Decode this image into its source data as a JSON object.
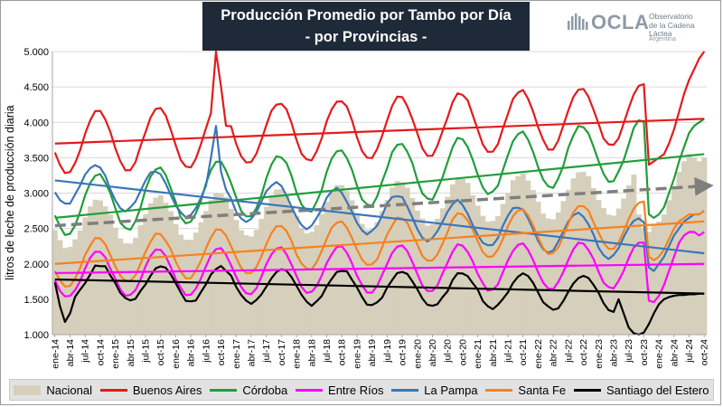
{
  "title": {
    "line1": "Producción Promedio por Tambo por Día",
    "line2": "- por Provincias -"
  },
  "logo": {
    "name": "OCLA",
    "line1": "Observatorio",
    "line2": "de la Cadena Láctea",
    "country": "Argentina",
    "color": "#8e9aa6"
  },
  "chart_data": {
    "type": "line",
    "ylabel": "litros de leche de producción diaria",
    "ylim": [
      1000,
      5000
    ],
    "yticks": [
      1000,
      1500,
      2000,
      2500,
      3000,
      3500,
      4000,
      4500,
      5000
    ],
    "ytick_labels": [
      "1.000",
      "1.500",
      "2.000",
      "2.500",
      "3.000",
      "3.500",
      "4.000",
      "4.500",
      "5.000"
    ],
    "grid": true,
    "legend_position": "bottom",
    "x_start": "ene-14",
    "months": 130,
    "x_tick_labels": [
      "ene-14",
      "abr-14",
      "jul-14",
      "oct-14",
      "ene-15",
      "abr-15",
      "jul-15",
      "oct-15",
      "ene-16",
      "abr-16",
      "jul-16",
      "oct-16",
      "ene-17",
      "abr-17",
      "jul-17",
      "oct-17",
      "ene-18",
      "abr-18",
      "jul-18",
      "oct-18",
      "ene-19",
      "abr-19",
      "jul-19",
      "oct-19",
      "ene-20",
      "abr-20",
      "jul-20",
      "oct-20",
      "ene-21",
      "abr-21",
      "jul-21",
      "oct-21",
      "ene-22",
      "abr-22",
      "jul-22",
      "oct-22",
      "ene-23",
      "abr-23",
      "jul-23",
      "oct-23",
      "ene-24",
      "abr-24",
      "jul-24",
      "oct-24"
    ],
    "series": [
      {
        "name": "Nacional",
        "kind": "area",
        "color": "#d6cfbb",
        "mean": 2550,
        "slope": 4.2,
        "amp": 330,
        "phase": 8.5,
        "noise": 35,
        "tail": [
          [
            116,
            2700
          ],
          [
            117,
            2500
          ],
          [
            118,
            2450
          ],
          [
            119,
            2550
          ],
          [
            120,
            2600
          ],
          [
            121,
            2700
          ],
          [
            122,
            2900
          ],
          [
            123,
            3050
          ],
          [
            124,
            3300
          ],
          [
            125,
            3450
          ],
          [
            126,
            3550
          ],
          [
            127,
            3500
          ],
          [
            128,
            3450
          ],
          [
            129,
            3500
          ]
        ]
      },
      {
        "name": "Buenos Aires",
        "kind": "line",
        "color": "#e41a1c",
        "mean": 3700,
        "slope": 3.5,
        "amp": 430,
        "phase": 8.5,
        "noise": 40,
        "spikes": [
          [
            32,
            5000
          ],
          [
            33,
            4500
          ],
          [
            34,
            3950
          ]
        ],
        "tail": [
          [
            118,
            3400
          ],
          [
            119,
            3450
          ],
          [
            120,
            3500
          ],
          [
            121,
            3550
          ],
          [
            122,
            3700
          ],
          [
            123,
            3900
          ],
          [
            124,
            4150
          ],
          [
            125,
            4400
          ],
          [
            126,
            4600
          ],
          [
            127,
            4750
          ],
          [
            128,
            4900
          ],
          [
            129,
            5000
          ]
        ]
      },
      {
        "name": "Córdoba",
        "kind": "line",
        "color": "#1f9e3a",
        "mean": 2800,
        "slope": 7.0,
        "amp": 420,
        "phase": 8.5,
        "noise": 40,
        "tail": [
          [
            118,
            2700
          ],
          [
            119,
            2650
          ],
          [
            120,
            2700
          ],
          [
            121,
            2800
          ],
          [
            122,
            3000
          ],
          [
            123,
            3200
          ],
          [
            124,
            3450
          ],
          [
            125,
            3650
          ],
          [
            126,
            3850
          ],
          [
            127,
            3950
          ],
          [
            128,
            4000
          ],
          [
            129,
            4050
          ]
        ]
      },
      {
        "name": "Entre Ríos",
        "kind": "line",
        "color": "#ff00ff",
        "mean": 1850,
        "slope": 1.2,
        "amp": 330,
        "phase": 8.5,
        "noise": 30,
        "tail": [
          [
            118,
            1480
          ],
          [
            119,
            1460
          ],
          [
            120,
            1550
          ],
          [
            121,
            1700
          ],
          [
            122,
            1900
          ],
          [
            123,
            2100
          ],
          [
            124,
            2300
          ],
          [
            125,
            2400
          ],
          [
            126,
            2450
          ],
          [
            127,
            2450
          ],
          [
            128,
            2400
          ],
          [
            129,
            2450
          ]
        ]
      },
      {
        "name": "La Pampa",
        "kind": "line",
        "color": "#3a76b8",
        "mean": 3150,
        "slope": -7.0,
        "amp": 300,
        "phase": 8.0,
        "noise": 40,
        "spikes": [
          [
            31,
            3500
          ],
          [
            32,
            3950
          ],
          [
            33,
            3300
          ]
        ],
        "tail": [
          [
            118,
            1950
          ],
          [
            119,
            1900
          ],
          [
            120,
            2000
          ],
          [
            121,
            2100
          ],
          [
            122,
            2250
          ],
          [
            123,
            2400
          ],
          [
            124,
            2500
          ],
          [
            125,
            2600
          ],
          [
            126,
            2650
          ],
          [
            127,
            2700
          ],
          [
            128,
            2700
          ],
          [
            129,
            2750
          ]
        ]
      },
      {
        "name": "Santa Fe",
        "kind": "line",
        "color": "#f58220",
        "mean": 2000,
        "slope": 4.8,
        "amp": 330,
        "phase": 8.5,
        "noise": 30,
        "tail": [
          [
            118,
            2100
          ],
          [
            119,
            2050
          ],
          [
            120,
            2100
          ],
          [
            121,
            2200
          ],
          [
            122,
            2350
          ],
          [
            123,
            2500
          ],
          [
            124,
            2600
          ],
          [
            125,
            2650
          ],
          [
            126,
            2700
          ],
          [
            127,
            2700
          ],
          [
            128,
            2700
          ],
          [
            129,
            2750
          ]
        ]
      },
      {
        "name": "Santiago del Estero",
        "kind": "line",
        "color": "#000000",
        "mean": 1750,
        "slope": -1.5,
        "amp": 250,
        "phase": 9.0,
        "noise": 45,
        "dips": [
          [
            1,
            1400
          ],
          [
            2,
            1180
          ],
          [
            3,
            1300
          ]
        ],
        "tail": [
          [
            112,
            1500
          ],
          [
            113,
            1300
          ],
          [
            114,
            1100
          ],
          [
            115,
            1020
          ],
          [
            116,
            1000
          ],
          [
            117,
            1030
          ],
          [
            118,
            1150
          ],
          [
            119,
            1300
          ],
          [
            120,
            1430
          ],
          [
            121,
            1500
          ],
          [
            122,
            1530
          ],
          [
            123,
            1550
          ],
          [
            124,
            1560
          ],
          [
            125,
            1560
          ],
          [
            126,
            1570
          ],
          [
            127,
            1570
          ],
          [
            128,
            1580
          ],
          [
            129,
            1580
          ]
        ]
      }
    ],
    "trend_lines": [
      {
        "name": "Nacional",
        "color": "#7f7f7f",
        "dashed": true,
        "arrow": true,
        "y0": 2540,
        "y1": 3100
      },
      {
        "name": "Buenos Aires",
        "color": "#e41a1c",
        "dashed": false,
        "y0": 3700,
        "y1": 4050
      },
      {
        "name": "Córdoba",
        "color": "#1f9e3a",
        "dashed": false,
        "y0": 2650,
        "y1": 3550
      },
      {
        "name": "Entre Ríos",
        "color": "#ff00ff",
        "dashed": false,
        "y0": 1870,
        "y1": 2000
      },
      {
        "name": "La Pampa",
        "color": "#3a76b8",
        "dashed": false,
        "y0": 3180,
        "y1": 2150
      },
      {
        "name": "Santa Fe",
        "color": "#f58220",
        "dashed": false,
        "y0": 2000,
        "y1": 2600
      },
      {
        "name": "Santiago del Estero",
        "color": "#000000",
        "dashed": false,
        "y0": 1780,
        "y1": 1580
      }
    ]
  }
}
